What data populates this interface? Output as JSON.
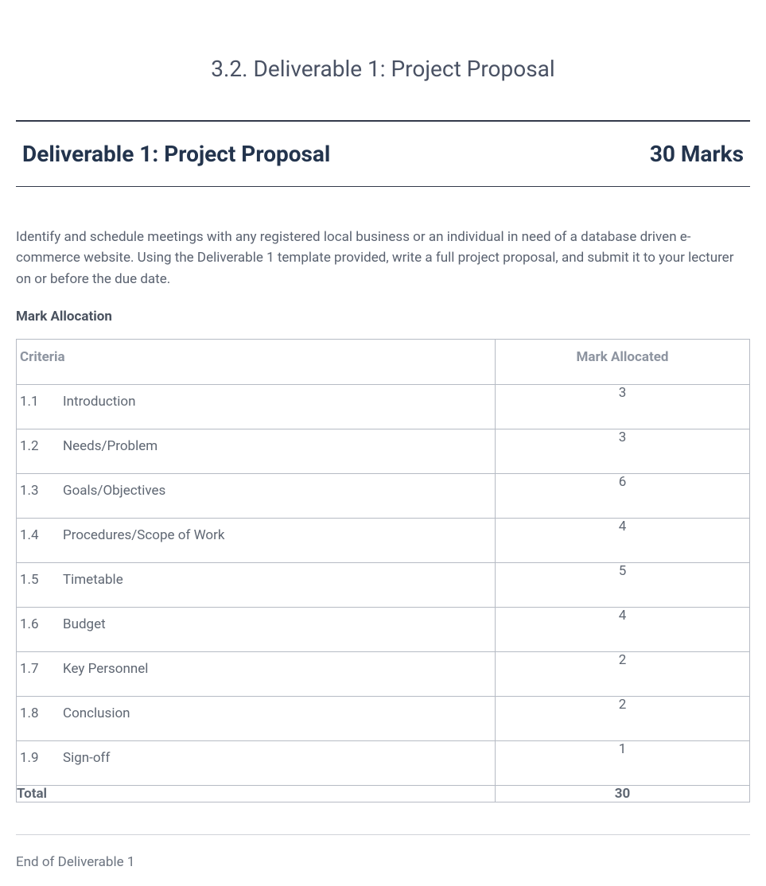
{
  "section_title": "3.2. Deliverable 1: Project Proposal",
  "header": {
    "left": "Deliverable 1: Project Proposal",
    "right": "30 Marks"
  },
  "intro_paragraph": "Identify and schedule meetings with any registered local business or an individual in need of a database driven e-commerce website. Using the Deliverable 1 template provided, write a full project proposal, and submit it to your lecturer on or before the due date.",
  "subheading": "Mark Allocation",
  "table": {
    "columns": [
      "Criteria",
      "Mark Allocated"
    ],
    "column_widths": [
      "auto",
      "320px"
    ],
    "rows": [
      {
        "num": "1.1",
        "label": "Introduction",
        "mark": "3"
      },
      {
        "num": "1.2",
        "label": "Needs/Problem",
        "mark": "3"
      },
      {
        "num": "1.3",
        "label": "Goals/Objectives",
        "mark": "6"
      },
      {
        "num": "1.4",
        "label": "Procedures/Scope of Work",
        "mark": "4"
      },
      {
        "num": "1.5",
        "label": "Timetable",
        "mark": "5"
      },
      {
        "num": "1.6",
        "label": "Budget",
        "mark": "4"
      },
      {
        "num": "1.7",
        "label": "Key Personnel",
        "mark": "2"
      },
      {
        "num": "1.8",
        "label": "Conclusion",
        "mark": "2"
      },
      {
        "num": "1.9",
        "label": "Sign-off",
        "mark": "1"
      }
    ],
    "total": {
      "label": "Total",
      "value": "30"
    }
  },
  "end_text": "End of Deliverable 1",
  "colors": {
    "heading": "#23344d",
    "body_text": "#5a6270",
    "table_border": "#b6bbc4",
    "th_text": "#8d94a0",
    "hr_dark": "#333a4a",
    "hr_light": "#d0d3d9",
    "background": "#ffffff"
  },
  "typography": {
    "section_title_fontsize": 28,
    "header_fontsize": 28,
    "body_fontsize": 17,
    "font_family": "system-ui sans-serif"
  }
}
